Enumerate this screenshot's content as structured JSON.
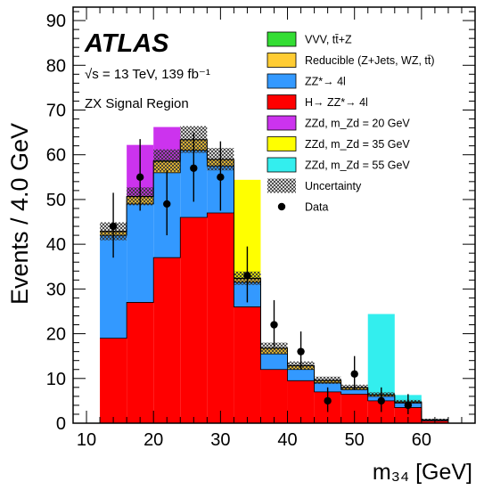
{
  "chart_data": {
    "type": "bar",
    "stacked": true,
    "title": "",
    "experiment": "ATLAS",
    "energy_label": "√s = 13 TeV, 139 fb⁻¹",
    "region_label": "ZX Signal Region",
    "xlabel": "m₃₄ [GeV]",
    "ylabel": "Events / 4.0 GeV",
    "xlim": [
      8,
      68
    ],
    "ylim": [
      0,
      93
    ],
    "x_ticks": [
      10,
      20,
      30,
      40,
      50,
      60
    ],
    "y_ticks": [
      0,
      10,
      20,
      30,
      40,
      50,
      60,
      70,
      80,
      90
    ],
    "bin_edges": [
      12,
      16,
      20,
      24,
      28,
      32,
      36,
      40,
      44,
      48,
      52,
      56,
      60,
      64
    ],
    "stack": [
      {
        "name": "H→ ZZ*→ 4l",
        "color": "#ff0000",
        "values": [
          19,
          27,
          37,
          46,
          47,
          26,
          12,
          9.5,
          7,
          6.5,
          5,
          3.5,
          0.5
        ]
      },
      {
        "name": "ZZ*→ 4l",
        "color": "#3399ff",
        "values": [
          23,
          22,
          19,
          15,
          10.5,
          5.5,
          3.5,
          2.5,
          2,
          1,
          1,
          1,
          0.2
        ]
      },
      {
        "name": "Reducible (Z+Jets, WZ, tt̄)",
        "color": "#ffcc33",
        "values": [
          0.8,
          1.6,
          2.5,
          2.3,
          1.4,
          0.8,
          1.2,
          0.8,
          0.5,
          0.4,
          0.3,
          0.2,
          0.1
        ]
      },
      {
        "name": "VVV, tt̄+Z",
        "color": "#33dd33",
        "values": [
          0.1,
          0.1,
          0.2,
          0.1,
          0.1,
          0.1,
          0.1,
          0.1,
          0.1,
          0.1,
          0.1,
          0.1,
          0
        ]
      }
    ],
    "signals": [
      {
        "name": "ZZd, m_Zd = 20 GeV",
        "color": "#cc33ee",
        "bins": [
          [
            16,
            20,
            11.5
          ],
          [
            20,
            24,
            7.5
          ]
        ]
      },
      {
        "name": "ZZd, m_Zd = 35 GeV",
        "color": "#ffff00",
        "bins": [
          [
            32,
            36,
            22
          ]
        ]
      },
      {
        "name": "ZZd, m_Zd = 55 GeV",
        "color": "#33eeee",
        "bins": [
          [
            52,
            56,
            18
          ],
          [
            56,
            60,
            1.5
          ]
        ]
      }
    ],
    "uncertainty": {
      "name": "Uncertainty",
      "values": [
        2,
        2,
        2.5,
        3,
        2.5,
        1.5,
        1.2,
        0.9,
        0.8,
        0.6,
        0.5,
        0.4,
        0.2
      ]
    },
    "data": {
      "name": "Data",
      "x": [
        14,
        18,
        22,
        26,
        30,
        34,
        38,
        42,
        46,
        50,
        54,
        58
      ],
      "y": [
        44,
        55,
        49,
        57,
        55,
        33,
        22,
        16,
        5,
        11,
        5,
        4
      ],
      "err_low": [
        7,
        7.5,
        7,
        7.5,
        7.5,
        6,
        5,
        4,
        2.5,
        3.5,
        2.5,
        2
      ],
      "err_high": [
        7.5,
        8.5,
        7.5,
        8,
        8,
        6.5,
        5.5,
        4.5,
        3,
        4,
        3,
        2.5
      ]
    },
    "legend_position": "top-right",
    "legend_order": [
      "VVV, tt̄+Z",
      "Reducible (Z+Jets, WZ, tt̄)",
      "ZZ*→ 4l",
      "H→ ZZ*→ 4l",
      "ZZd, m_Zd = 20 GeV",
      "ZZd, m_Zd = 35 GeV",
      "ZZd, m_Zd = 55 GeV",
      "Uncertainty",
      "Data"
    ]
  }
}
